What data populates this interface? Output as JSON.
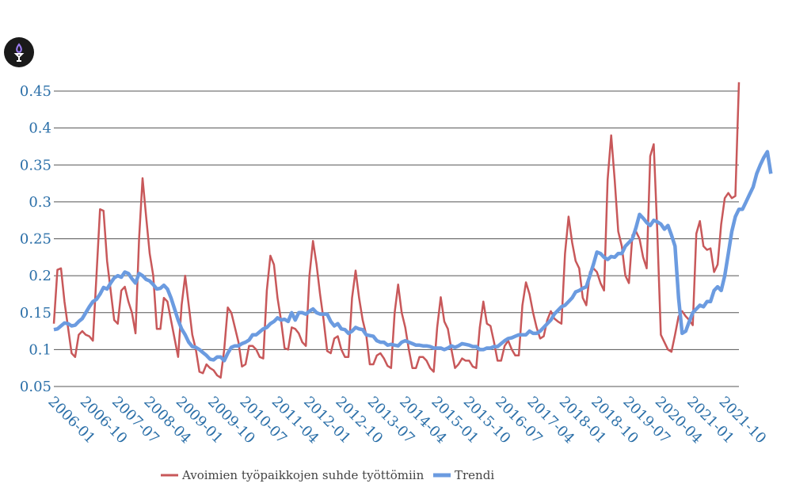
{
  "colors": {
    "ratio": "#c8585a",
    "trend": "#6b9be0",
    "tick": "#2b6fa8",
    "grid": "#555555",
    "logo": "#1a1a1a",
    "logo_accent": "#9b7cf0"
  },
  "logo": {
    "icon": "flame-torch-icon"
  },
  "chart_data": {
    "type": "line",
    "title": "",
    "xlabel": "",
    "ylabel": "",
    "ylim": [
      0.05,
      0.47
    ],
    "yticks": [
      0.05,
      0.1,
      0.15,
      0.2,
      0.25,
      0.3,
      0.35,
      0.4,
      0.45
    ],
    "yticklabels": [
      "0.05",
      "0.1",
      "0.15",
      "0.2",
      "0.25",
      "0.3",
      "0.35",
      "0.4",
      "0.45"
    ],
    "xticks": [
      "2006-01",
      "2006-10",
      "2007-07",
      "2008-04",
      "2009-01",
      "2009-10",
      "2010-07",
      "2011-04",
      "2012-01",
      "2012-10",
      "2013-07",
      "2014-04",
      "2015-01",
      "2015-10",
      "2016-07",
      "2017-04",
      "2018-01",
      "2018-10",
      "2019-07",
      "2020-04",
      "2021-01",
      "2021-10"
    ],
    "grid": true,
    "legend": "bottom",
    "x_start": "2006-01",
    "series": [
      {
        "name": "Avoimien työpaikkojen suhde työttömiin",
        "values": [
          0.135,
          0.208,
          0.21,
          0.165,
          0.13,
          0.095,
          0.09,
          0.12,
          0.125,
          0.12,
          0.118,
          0.112,
          0.2,
          0.29,
          0.288,
          0.22,
          0.18,
          0.14,
          0.135,
          0.18,
          0.185,
          0.165,
          0.15,
          0.122,
          0.25,
          0.332,
          0.28,
          0.23,
          0.2,
          0.128,
          0.128,
          0.17,
          0.165,
          0.14,
          0.115,
          0.09,
          0.16,
          0.2,
          0.16,
          0.12,
          0.1,
          0.07,
          0.068,
          0.08,
          0.075,
          0.072,
          0.065,
          0.062,
          0.1,
          0.157,
          0.15,
          0.13,
          0.11,
          0.077,
          0.08,
          0.105,
          0.105,
          0.1,
          0.09,
          0.088,
          0.18,
          0.227,
          0.215,
          0.17,
          0.14,
          0.102,
          0.1,
          0.13,
          0.128,
          0.122,
          0.11,
          0.105,
          0.2,
          0.247,
          0.215,
          0.175,
          0.14,
          0.098,
          0.095,
          0.115,
          0.118,
          0.1,
          0.09,
          0.09,
          0.17,
          0.207,
          0.17,
          0.14,
          0.12,
          0.08,
          0.08,
          0.092,
          0.095,
          0.088,
          0.078,
          0.075,
          0.15,
          0.188,
          0.15,
          0.13,
          0.1,
          0.075,
          0.075,
          0.09,
          0.09,
          0.085,
          0.075,
          0.07,
          0.13,
          0.171,
          0.138,
          0.128,
          0.1,
          0.075,
          0.08,
          0.088,
          0.085,
          0.085,
          0.077,
          0.075,
          0.13,
          0.165,
          0.135,
          0.132,
          0.11,
          0.085,
          0.085,
          0.105,
          0.112,
          0.1,
          0.092,
          0.092,
          0.16,
          0.191,
          0.175,
          0.15,
          0.13,
          0.115,
          0.118,
          0.14,
          0.152,
          0.142,
          0.138,
          0.135,
          0.23,
          0.28,
          0.245,
          0.22,
          0.21,
          0.17,
          0.16,
          0.205,
          0.21,
          0.205,
          0.19,
          0.18,
          0.33,
          0.39,
          0.33,
          0.26,
          0.24,
          0.2,
          0.19,
          0.255,
          0.26,
          0.25,
          0.225,
          0.21,
          0.362,
          0.378,
          0.26,
          0.12,
          0.11,
          0.1,
          0.097,
          0.12,
          0.145,
          0.152,
          0.145,
          0.14,
          0.133,
          0.257,
          0.274,
          0.24,
          0.235,
          0.237,
          0.205,
          0.215,
          0.27,
          0.305,
          0.312,
          0.305,
          0.308,
          0.462
        ]
      },
      {
        "name": "Trendi",
        "values": [
          0.127,
          0.128,
          0.132,
          0.136,
          0.135,
          0.132,
          0.133,
          0.138,
          0.142,
          0.15,
          0.158,
          0.165,
          0.168,
          0.175,
          0.184,
          0.182,
          0.19,
          0.197,
          0.2,
          0.198,
          0.205,
          0.203,
          0.196,
          0.19,
          0.203,
          0.2,
          0.195,
          0.193,
          0.188,
          0.182,
          0.183,
          0.187,
          0.182,
          0.17,
          0.155,
          0.14,
          0.128,
          0.12,
          0.11,
          0.104,
          0.103,
          0.1,
          0.096,
          0.092,
          0.087,
          0.086,
          0.09,
          0.09,
          0.085,
          0.095,
          0.103,
          0.105,
          0.105,
          0.108,
          0.11,
          0.113,
          0.12,
          0.12,
          0.124,
          0.128,
          0.13,
          0.135,
          0.138,
          0.143,
          0.14,
          0.141,
          0.138,
          0.15,
          0.14,
          0.15,
          0.15,
          0.148,
          0.152,
          0.155,
          0.15,
          0.148,
          0.148,
          0.148,
          0.138,
          0.132,
          0.135,
          0.128,
          0.127,
          0.122,
          0.125,
          0.13,
          0.128,
          0.127,
          0.12,
          0.119,
          0.118,
          0.112,
          0.11,
          0.11,
          0.106,
          0.107,
          0.106,
          0.105,
          0.11,
          0.112,
          0.11,
          0.108,
          0.106,
          0.106,
          0.105,
          0.105,
          0.104,
          0.102,
          0.102,
          0.102,
          0.1,
          0.102,
          0.105,
          0.103,
          0.105,
          0.108,
          0.107,
          0.106,
          0.104,
          0.104,
          0.1,
          0.1,
          0.102,
          0.102,
          0.104,
          0.104,
          0.108,
          0.112,
          0.115,
          0.116,
          0.118,
          0.12,
          0.12,
          0.12,
          0.125,
          0.122,
          0.122,
          0.125,
          0.13,
          0.135,
          0.14,
          0.148,
          0.153,
          0.158,
          0.16,
          0.165,
          0.17,
          0.178,
          0.18,
          0.183,
          0.185,
          0.2,
          0.215,
          0.232,
          0.23,
          0.225,
          0.222,
          0.226,
          0.225,
          0.23,
          0.23,
          0.24,
          0.245,
          0.25,
          0.265,
          0.283,
          0.278,
          0.272,
          0.268,
          0.275,
          0.273,
          0.27,
          0.263,
          0.268,
          0.255,
          0.24,
          0.17,
          0.122,
          0.125,
          0.138,
          0.15,
          0.155,
          0.16,
          0.158,
          0.165,
          0.165,
          0.18,
          0.185,
          0.18,
          0.2,
          0.23,
          0.26,
          0.28,
          0.29,
          0.29,
          0.3,
          0.31,
          0.32,
          0.338,
          0.35,
          0.36,
          0.368,
          0.338
        ]
      }
    ]
  }
}
